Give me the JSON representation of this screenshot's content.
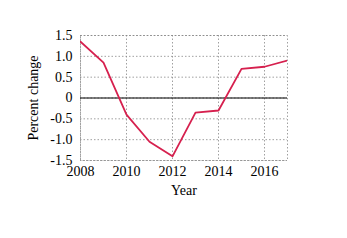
{
  "chart_data": {
    "type": "line",
    "x_label": "Year",
    "y_label": "Percent change",
    "x": [
      2008,
      2009,
      2010,
      2011,
      2012,
      2013,
      2014,
      2015,
      2016,
      2017
    ],
    "values": [
      1.35,
      0.85,
      -0.4,
      -1.05,
      -1.4,
      -0.35,
      -0.3,
      0.7,
      0.75,
      0.9
    ],
    "color": "#d6204e",
    "xlim": [
      2008,
      2017
    ],
    "xticks": [
      2008,
      2010,
      2012,
      2014,
      2016
    ],
    "ylim": [
      -1.5,
      1.5
    ],
    "yticks": [
      {
        "value": -1.5,
        "label": "-1.5"
      },
      {
        "value": -1,
        "label": "-1.0"
      },
      {
        "value": -0.5,
        "label": "-0.5"
      },
      0,
      0.5,
      {
        "value": 1,
        "label": "1.0"
      },
      1.5
    ],
    "grid": true
  }
}
